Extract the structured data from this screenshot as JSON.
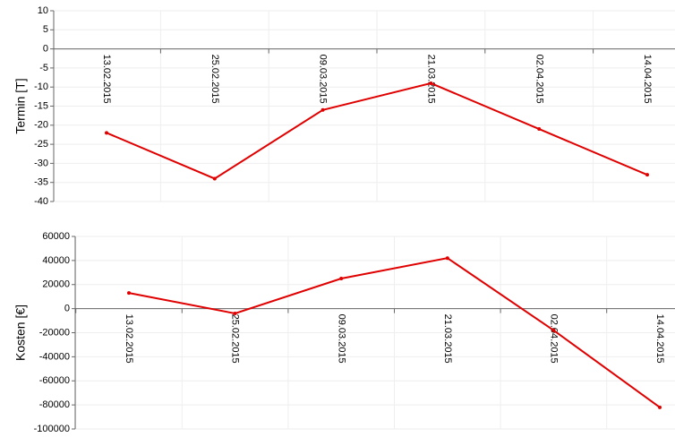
{
  "chart_data": [
    {
      "type": "line",
      "y_label": "Termin [T]",
      "categories": [
        "13.02.2015",
        "25.02.2015",
        "09.03.2015",
        "21.03.2015",
        "02.04.2015",
        "14.04.2015"
      ],
      "series": [
        {
          "name": "Termin",
          "color": "#e00000",
          "values": [
            -22,
            -34,
            -16,
            -9,
            -21,
            -33
          ]
        }
      ],
      "ylim": [
        -40,
        10
      ],
      "yticks": [
        -40,
        -35,
        -30,
        -25,
        -20,
        -15,
        -10,
        -5,
        0,
        5,
        10
      ],
      "grid": true
    },
    {
      "type": "line",
      "y_label": "Kosten [€]",
      "categories": [
        "13.02.2015",
        "25.02.2015",
        "09.03.2015",
        "21.03.2015",
        "02.04.2015",
        "14.04.2015"
      ],
      "series": [
        {
          "name": "Kosten",
          "color": "#e00000",
          "values": [
            13000,
            -4000,
            25000,
            42000,
            -18000,
            -82000
          ]
        }
      ],
      "ylim": [
        -100000,
        60000
      ],
      "yticks": [
        -100000,
        -80000,
        -60000,
        -40000,
        -20000,
        0,
        20000,
        40000,
        60000
      ],
      "grid": true
    }
  ]
}
